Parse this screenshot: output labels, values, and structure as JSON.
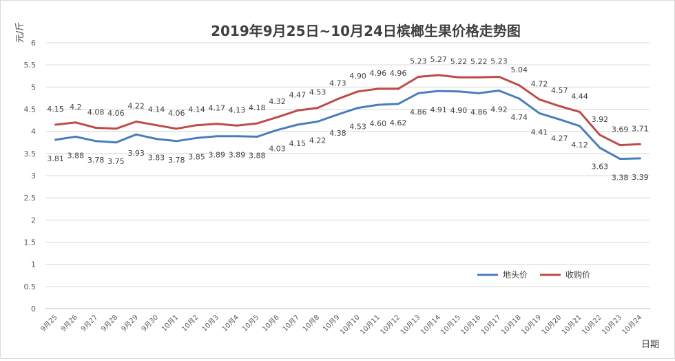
{
  "chart_data": {
    "type": "line",
    "title": "2019年9月25日~10月24日槟榔生果价格走势图",
    "ylabel": "元/斤",
    "xlabel": "日期",
    "ylim": [
      0,
      6
    ],
    "yticks": [
      "0",
      "0.5",
      "1",
      "1.5",
      "2",
      "2.5",
      "3",
      "3.5",
      "4",
      "4.5",
      "5",
      "5.5",
      "6"
    ],
    "grid": true,
    "legend_position": "bottom-right",
    "categories": [
      "9月25",
      "9月26",
      "9月27",
      "9月28",
      "9月29",
      "9月30",
      "10月1",
      "10月2",
      "10月3",
      "10月4",
      "10月5",
      "10月6",
      "10月7",
      "10月8",
      "10月9",
      "10月10",
      "10月11",
      "10月12",
      "10月13",
      "10月14",
      "10月15",
      "10月16",
      "10月17",
      "10月18",
      "10月19",
      "10月20",
      "10月21",
      "10月22",
      "10月23",
      "10月24"
    ],
    "series": [
      {
        "name": "地头价",
        "color": "#4a7ebb",
        "values": [
          3.81,
          3.88,
          3.78,
          3.75,
          3.93,
          3.83,
          3.78,
          3.85,
          3.89,
          3.89,
          3.88,
          4.03,
          4.15,
          4.22,
          4.38,
          4.53,
          4.6,
          4.62,
          4.86,
          4.91,
          4.9,
          4.86,
          4.92,
          4.74,
          4.41,
          4.27,
          4.12,
          3.63,
          3.38,
          3.39
        ],
        "labels": [
          "3.81",
          "3.88",
          "3.78",
          "3.75",
          "3.93",
          "3.83",
          "3.78",
          "3.85",
          "3.89",
          "3.89",
          "3.88",
          "4.03",
          "4.15",
          "4.22",
          "4.38",
          "4.53",
          "4.60",
          "4.62",
          "4.86",
          "4.91",
          "4.90",
          "4.86",
          "4.92",
          "4.74",
          "4.41",
          "4.27",
          "4.12",
          "3.63",
          "3.38",
          "3.39"
        ]
      },
      {
        "name": "收购价",
        "color": "#be4b48",
        "values": [
          4.15,
          4.2,
          4.08,
          4.06,
          4.22,
          4.14,
          4.06,
          4.14,
          4.17,
          4.13,
          4.18,
          4.32,
          4.47,
          4.53,
          4.73,
          4.9,
          4.96,
          4.96,
          5.23,
          5.27,
          5.22,
          5.22,
          5.23,
          5.04,
          4.72,
          4.57,
          4.44,
          3.92,
          3.69,
          3.71
        ],
        "labels": [
          "4.15",
          "4.2",
          "4.08",
          "4.06",
          "4.22",
          "4.14",
          "4.06",
          "4.14",
          "4.17",
          "4.13",
          "4.18",
          "4.32",
          "4.47",
          "4.53",
          "4.73",
          "4.90",
          "4.96",
          "4.96",
          "5.23",
          "5.27",
          "5.22",
          "5.22",
          "5.23",
          "5.04",
          "4.72",
          "4.57",
          "4.44",
          "3.92",
          "3.69",
          "3.71"
        ]
      }
    ]
  }
}
